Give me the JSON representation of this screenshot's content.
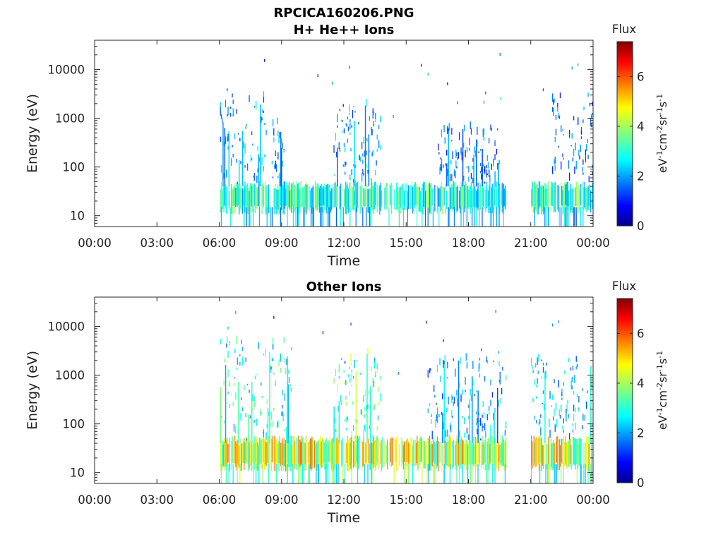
{
  "figure": {
    "filename": "RPCICA160206.PNG"
  },
  "chart_data": [
    {
      "type": "heatmap",
      "title": "H+ He++ Ions",
      "xlabel": "Time",
      "ylabel": "Energy (eV)",
      "x_ticks": [
        "00:00",
        "03:00",
        "06:00",
        "09:00",
        "12:00",
        "15:00",
        "18:00",
        "21:00",
        "00:00"
      ],
      "x_range_hours": [
        0,
        24
      ],
      "y_scale": "log",
      "y_ticks": [
        "10",
        "100",
        "1000",
        "10000"
      ],
      "y_range": [
        6,
        40000
      ],
      "colorbar": {
        "label": "Flux",
        "unit": "eV⁻¹cm⁻²sr⁻¹s⁻¹",
        "range": [
          0,
          7.4
        ],
        "ticks": [
          "0",
          "2",
          "4",
          "6"
        ],
        "colormap": "jet"
      },
      "data_coverage_hours": [
        [
          6.0,
          19.8
        ],
        [
          21.0,
          24.0
        ]
      ],
      "activity_bursts": [
        {
          "start_hour": 6.0,
          "end_hour": 8.3,
          "max_energy_eV": 3000,
          "level": 2.2
        },
        {
          "start_hour": 8.5,
          "end_hour": 9.1,
          "max_energy_eV": 800,
          "level": 2.0
        },
        {
          "start_hour": 11.5,
          "end_hour": 13.8,
          "max_energy_eV": 2000,
          "level": 2.1
        },
        {
          "start_hour": 16.5,
          "end_hour": 19.5,
          "max_energy_eV": 600,
          "level": 1.8
        },
        {
          "start_hour": 22.0,
          "end_hour": 24.0,
          "max_energy_eV": 3000,
          "level": 1.8
        }
      ],
      "low_energy_band_eV": [
        15,
        40
      ],
      "low_energy_band_level": 3.5
    },
    {
      "type": "heatmap",
      "title": "Other Ions",
      "xlabel": "Time",
      "ylabel": "Energy (eV)",
      "x_ticks": [
        "00:00",
        "03:00",
        "06:00",
        "09:00",
        "12:00",
        "15:00",
        "18:00",
        "21:00",
        "00:00"
      ],
      "x_range_hours": [
        0,
        24
      ],
      "y_scale": "log",
      "y_ticks": [
        "10",
        "100",
        "1000",
        "10000"
      ],
      "y_range": [
        6,
        40000
      ],
      "colorbar": {
        "label": "Flux",
        "unit": "eV⁻¹cm⁻²sr⁻¹s⁻¹",
        "range": [
          0,
          7.4
        ],
        "ticks": [
          "0",
          "2",
          "4",
          "6"
        ],
        "colormap": "jet"
      },
      "data_coverage_hours": [
        [
          6.0,
          19.8
        ],
        [
          21.0,
          24.0
        ]
      ],
      "activity_bursts": [
        {
          "start_hour": 6.0,
          "end_hour": 9.5,
          "max_energy_eV": 5000,
          "level": 3.0
        },
        {
          "start_hour": 11.5,
          "end_hour": 13.8,
          "max_energy_eV": 3000,
          "level": 3.5
        },
        {
          "start_hour": 16.0,
          "end_hour": 19.8,
          "max_energy_eV": 2000,
          "level": 2.2
        },
        {
          "start_hour": 21.0,
          "end_hour": 24.0,
          "max_energy_eV": 2000,
          "level": 2.4
        }
      ],
      "low_energy_band_eV": [
        15,
        45
      ],
      "low_energy_band_level": 5.0
    }
  ]
}
